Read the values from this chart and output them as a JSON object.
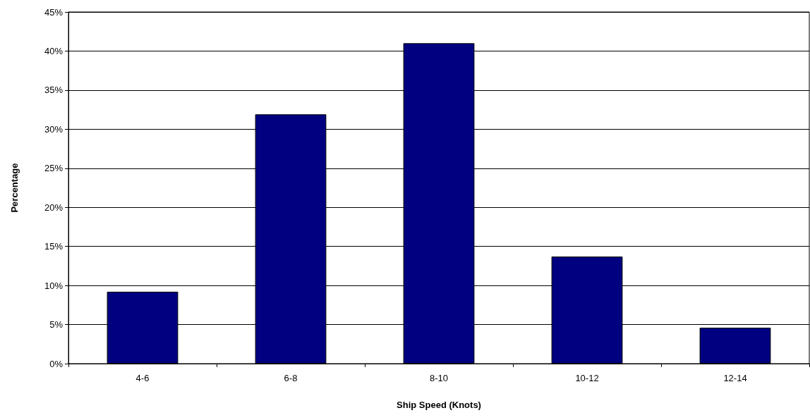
{
  "chart_data": {
    "type": "bar",
    "xlabel": "Ship Speed (Knots)",
    "ylabel": "Percentage",
    "categories": [
      "4-6",
      "6-8",
      "8-10",
      "10-12",
      "12-14"
    ],
    "values": [
      9.2,
      31.9,
      41.0,
      13.7,
      4.6
    ],
    "color": "#000080",
    "ylim": [
      0,
      45
    ],
    "yticks": [
      {
        "value": 0,
        "label": "0%"
      },
      {
        "value": 5,
        "label": "5%"
      },
      {
        "value": 10,
        "label": "10%"
      },
      {
        "value": 15,
        "label": "15%"
      },
      {
        "value": 20,
        "label": "20%"
      },
      {
        "value": 25,
        "label": "25%"
      },
      {
        "value": 30,
        "label": "30%"
      },
      {
        "value": 35,
        "label": "35%"
      },
      {
        "value": 40,
        "label": "40%"
      },
      {
        "value": 45,
        "label": "45%"
      }
    ],
    "grid": "y"
  }
}
